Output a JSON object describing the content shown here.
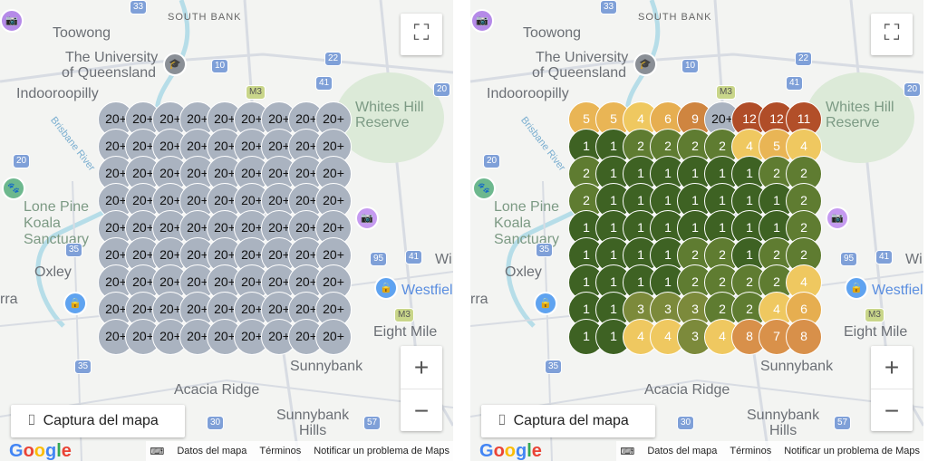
{
  "map_labels": {
    "south_bank": "SOUTH BANK",
    "toowong": "Toowong",
    "uq1": "The University",
    "uq2": "of Queensland",
    "indooroopilly": "Indooroopilly",
    "whites1": "Whites Hill",
    "whites2": "Reserve",
    "lone1": "Lone Pine",
    "lone2": "Koala Sanctuary",
    "oxley": "Oxley",
    "rra": "rra",
    "westfield": "Westfield",
    "eight_mile": "Eight Mile",
    "sunnybank": "Sunnybank",
    "acacia": "Acacia Ridge",
    "sunnybank_hills1": "Sunnybank",
    "sunnybank_hills2": "Hills",
    "wi": "Wi",
    "brisbane_river": "Brisbane River"
  },
  "road_shields": [
    "33",
    "10",
    "22",
    "41",
    "20",
    "M3",
    "20",
    "35",
    "95",
    "41",
    "M3",
    "35",
    "30",
    "57"
  ],
  "controls": {
    "fullscreen_icon": "fullscreen-icon",
    "zoom_in": "+",
    "zoom_out": "−",
    "capture_label": "Captura del mapa",
    "google": "Google"
  },
  "footer": {
    "map_data": "Datos del mapa",
    "terms": "Términos",
    "report": "Notificar un problema de Maps"
  },
  "colors": {
    "1": "#3e6223",
    "2": "#5f7c31",
    "3": "#7c8a3b",
    "4": "#efc860",
    "5": "#e9b555",
    "6": "#e6ae50",
    "7": "#d9914a",
    "8": "#d8904a",
    "9": "#cf8540",
    "11": "#b24f29",
    "12": "#b04d28",
    "20+": "#aab3c0"
  },
  "left_grid": [
    [
      "20+",
      "20+",
      "20+",
      "20+",
      "20+",
      "20+",
      "20+",
      "20+",
      "20+"
    ],
    [
      "20+",
      "20+",
      "20+",
      "20+",
      "20+",
      "20+",
      "20+",
      "20+",
      "20+"
    ],
    [
      "20+",
      "20+",
      "20+",
      "20+",
      "20+",
      "20+",
      "20+",
      "20+",
      "20+"
    ],
    [
      "20+",
      "20+",
      "20+",
      "20+",
      "20+",
      "20+",
      "20+",
      "20+",
      "20+"
    ],
    [
      "20+",
      "20+",
      "20+",
      "20+",
      "20+",
      "20+",
      "20+",
      "20+",
      "20+"
    ],
    [
      "20+",
      "20+",
      "20+",
      "20+",
      "20+",
      "20+",
      "20+",
      "20+",
      "20+"
    ],
    [
      "20+",
      "20+",
      "20+",
      "20+",
      "20+",
      "20+",
      "20+",
      "20+",
      "20+"
    ],
    [
      "20+",
      "20+",
      "20+",
      "20+",
      "20+",
      "20+",
      "20+",
      "20+",
      "20+"
    ],
    [
      "20+",
      "20+",
      "20+",
      "20+",
      "20+",
      "20+",
      "20+",
      "20+",
      "20+"
    ]
  ],
  "right_grid": [
    [
      "5",
      "5",
      "4",
      "6",
      "9",
      "20+",
      "12",
      "12",
      "11"
    ],
    [
      "1",
      "1",
      "2",
      "2",
      "2",
      "2",
      "4",
      "5",
      "4"
    ],
    [
      "2",
      "1",
      "1",
      "1",
      "1",
      "1",
      "1",
      "2",
      "2"
    ],
    [
      "2",
      "1",
      "1",
      "1",
      "1",
      "1",
      "1",
      "1",
      "2"
    ],
    [
      "1",
      "1",
      "1",
      "1",
      "1",
      "1",
      "1",
      "1",
      "2"
    ],
    [
      "1",
      "1",
      "1",
      "1",
      "2",
      "2",
      "1",
      "2",
      "2"
    ],
    [
      "1",
      "1",
      "1",
      "1",
      "2",
      "2",
      "2",
      "2",
      "4"
    ],
    [
      "1",
      "1",
      "3",
      "3",
      "3",
      "2",
      "2",
      "4",
      "6"
    ],
    [
      "1",
      "1",
      "4",
      "4",
      "3",
      "4",
      "8",
      "7",
      "8"
    ]
  ]
}
